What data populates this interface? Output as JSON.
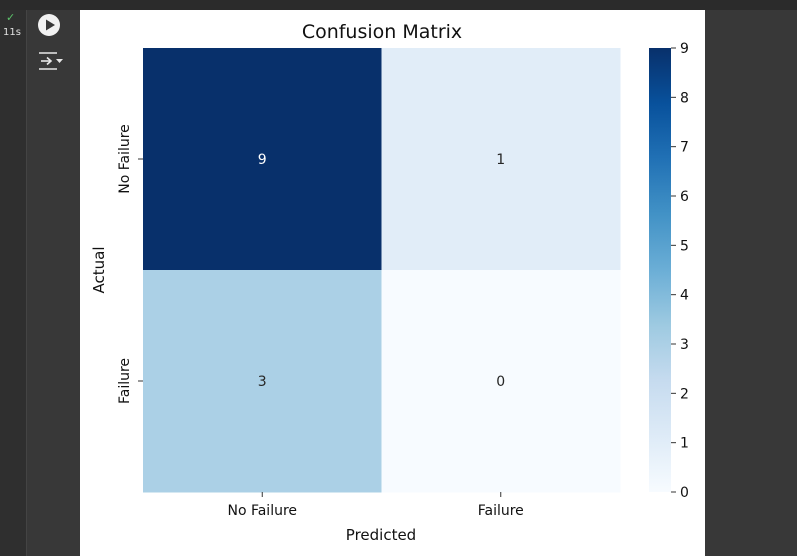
{
  "cell": {
    "status_icon": "checkmark-icon",
    "status_time": "11s",
    "run_icon": "play-icon",
    "output_icon": "output-toggle-icon"
  },
  "chart_data": {
    "type": "heatmap",
    "title": "Confusion Matrix",
    "xlabel": "Predicted",
    "ylabel": "Actual",
    "x_categories": [
      "No Failure",
      "Failure"
    ],
    "y_categories": [
      "No Failure",
      "Failure"
    ],
    "values": [
      [
        9,
        1
      ],
      [
        3,
        0
      ]
    ],
    "annotations": [
      "9",
      "1",
      "3",
      "0"
    ],
    "colormap": "Blues",
    "colormap_stops": [
      "#f7fbff",
      "#deebf7",
      "#c6dbef",
      "#9ecae1",
      "#6baed6",
      "#4292c6",
      "#2171b5",
      "#08519c",
      "#08306b"
    ],
    "colorbar_range": [
      0,
      9
    ],
    "colorbar_ticks": [
      "0",
      "1",
      "2",
      "3",
      "4",
      "5",
      "6",
      "7",
      "8",
      "9"
    ]
  }
}
